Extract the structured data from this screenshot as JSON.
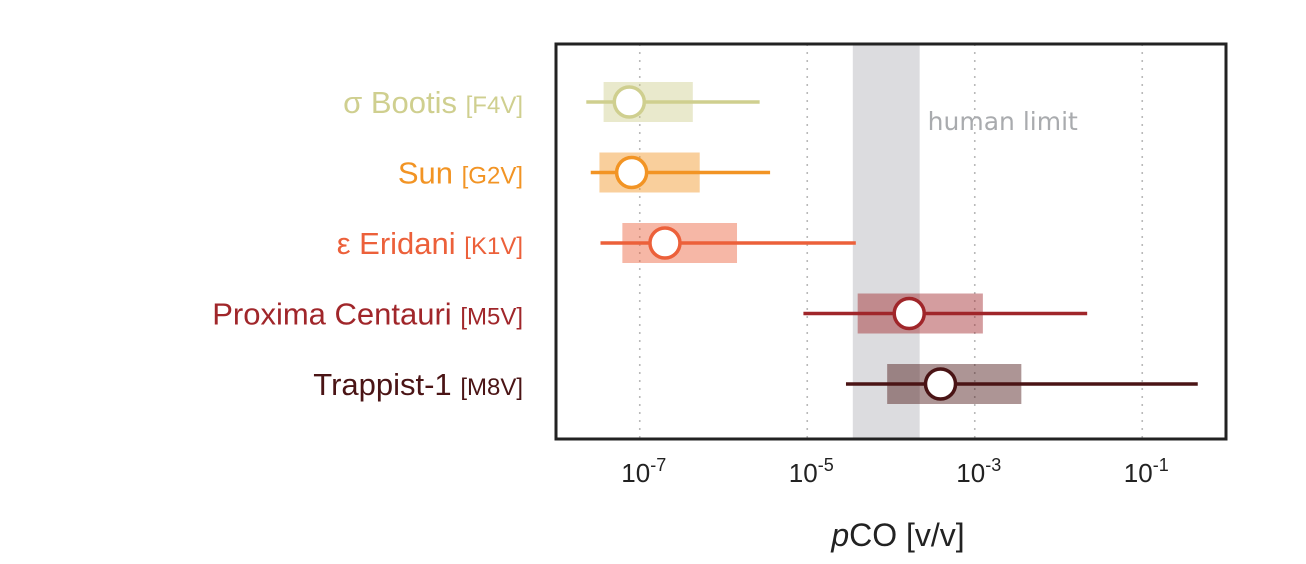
{
  "chart_data": {
    "type": "scatter",
    "xlabel_italic": "p",
    "xlabel_rest": "CO [v/v]",
    "xscale": "log",
    "xlim": [
      1e-08,
      1.0
    ],
    "xticks": [
      {
        "value": 1e-07,
        "base": "10",
        "exp": "-7"
      },
      {
        "value": 1e-05,
        "base": "10",
        "exp": "-5"
      },
      {
        "value": 0.001,
        "base": "10",
        "exp": "-3"
      },
      {
        "value": 0.1,
        "base": "10",
        "exp": "-1"
      }
    ],
    "grid": "vertical dotted",
    "band": {
      "label": "human limit",
      "x_range": [
        3.5e-05,
        0.00022
      ],
      "color": "#dcdcdf"
    },
    "series": [
      {
        "name": "σ Bootis",
        "type": "[F4V]",
        "color": "#cfcf8f",
        "median": 7.5e-08,
        "box": [
          3.7e-08,
          4.3e-07
        ],
        "whisker": [
          2.3e-08,
          2.7e-06
        ]
      },
      {
        "name": "Sun",
        "type": "[G2V]",
        "color": "#f29424",
        "median": 8e-08,
        "box": [
          3.3e-08,
          5.2e-07
        ],
        "whisker": [
          2.6e-08,
          3.6e-06
        ]
      },
      {
        "name": "ε Eridani",
        "type": "[K1V]",
        "color": "#ec603a",
        "median": 2e-07,
        "box": [
          6.2e-08,
          1.45e-06
        ],
        "whisker": [
          3.4e-08,
          3.8e-05
        ]
      },
      {
        "name": "Proxima Centauri",
        "type": "[M5V]",
        "color": "#a0262a",
        "median": 0.000165,
        "box": [
          4e-05,
          0.00125
        ],
        "whisker": [
          9e-06,
          0.022
        ]
      },
      {
        "name": "Trappist-1",
        "type": "[M8V]",
        "color": "#4a1415",
        "median": 0.00039,
        "box": [
          9e-05,
          0.0036
        ],
        "whisker": [
          2.9e-05,
          0.46
        ]
      }
    ]
  }
}
